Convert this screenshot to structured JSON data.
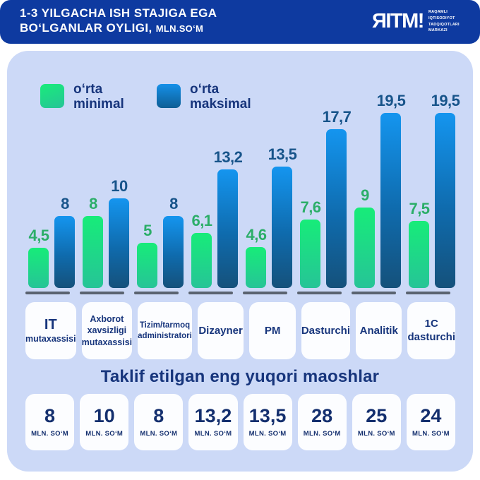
{
  "header": {
    "title_line1": "1-3 YILGACHA ISH STAJIGA EGA",
    "title_line2": "BO‘LGANLAR OYLIGI,",
    "title_line2_small": "MLN.SO‘M",
    "logo": {
      "text": "ЯITM!",
      "sub_lines": [
        "RAQAMLI",
        "IQTISODIYOT",
        "TADQIQOTLARI",
        "MARKAZI"
      ]
    }
  },
  "legend": [
    {
      "label": "o‘rta\nminimal",
      "color": "#1BEB7B"
    },
    {
      "label": "o‘rta\nmaksimal",
      "color": "#1590E8"
    }
  ],
  "chart_data": {
    "type": "bar",
    "title": "1-3 yilgacha ish stajiga ega bo‘lganlar oyligi, mln.so‘m",
    "categories": [
      "IT mutaxassisi",
      "Axborot xavsizligi mutaxassisi",
      "Tizim/tarmoq administratori",
      "Dizayner",
      "PM",
      "Dasturchi",
      "Analitik",
      "1C dasturchi"
    ],
    "categories_lines": [
      [
        "IT",
        "mutaxassisi"
      ],
      [
        "Axborot",
        "xavsizligi",
        "mutaxassisi"
      ],
      [
        "Tizim/tarmoq",
        "administratori"
      ],
      [
        "Dizayner"
      ],
      [
        "PM"
      ],
      [
        "Dasturchi"
      ],
      [
        "Analitik"
      ],
      [
        "1C",
        "dasturchi"
      ]
    ],
    "series": [
      {
        "name": "o‘rta minimal",
        "values": [
          4.5,
          8,
          5,
          6.1,
          4.6,
          7.6,
          9,
          7.5
        ],
        "labels": [
          "4,5",
          "8",
          "5",
          "6,1",
          "4,6",
          "7,6",
          "9",
          "7,5"
        ],
        "color_top": "#17EC79",
        "color_bottom": "#26C497"
      },
      {
        "name": "o‘rta maksimal",
        "values": [
          8,
          10,
          8,
          13.2,
          13.5,
          17.7,
          19.5,
          19.5
        ],
        "labels": [
          "8",
          "10",
          "8",
          "13,2",
          "13,5",
          "17,7",
          "19,5",
          "19,5"
        ],
        "color_top": "#1495EF",
        "color_bottom": "#15517B"
      }
    ],
    "ylim": [
      0,
      20
    ],
    "grid": false,
    "legend_position": "top-left",
    "value_label_style": "decimal-comma"
  },
  "bottom": {
    "heading": "Taklif etilgan eng yuqori maoshlar",
    "unit": "MLN. SO‘M",
    "values": [
      "8",
      "10",
      "8",
      "13,2",
      "13,5",
      "28",
      "25",
      "24"
    ]
  },
  "colors": {
    "header_bg": "#0E3AA0",
    "panel_bg": "#CCD9F7",
    "navy_text": "#17357C",
    "green_label": "#2BAE68",
    "blue_label": "#17548A",
    "baseline": "#5A6370",
    "card_bg": "#FCFDFF"
  }
}
